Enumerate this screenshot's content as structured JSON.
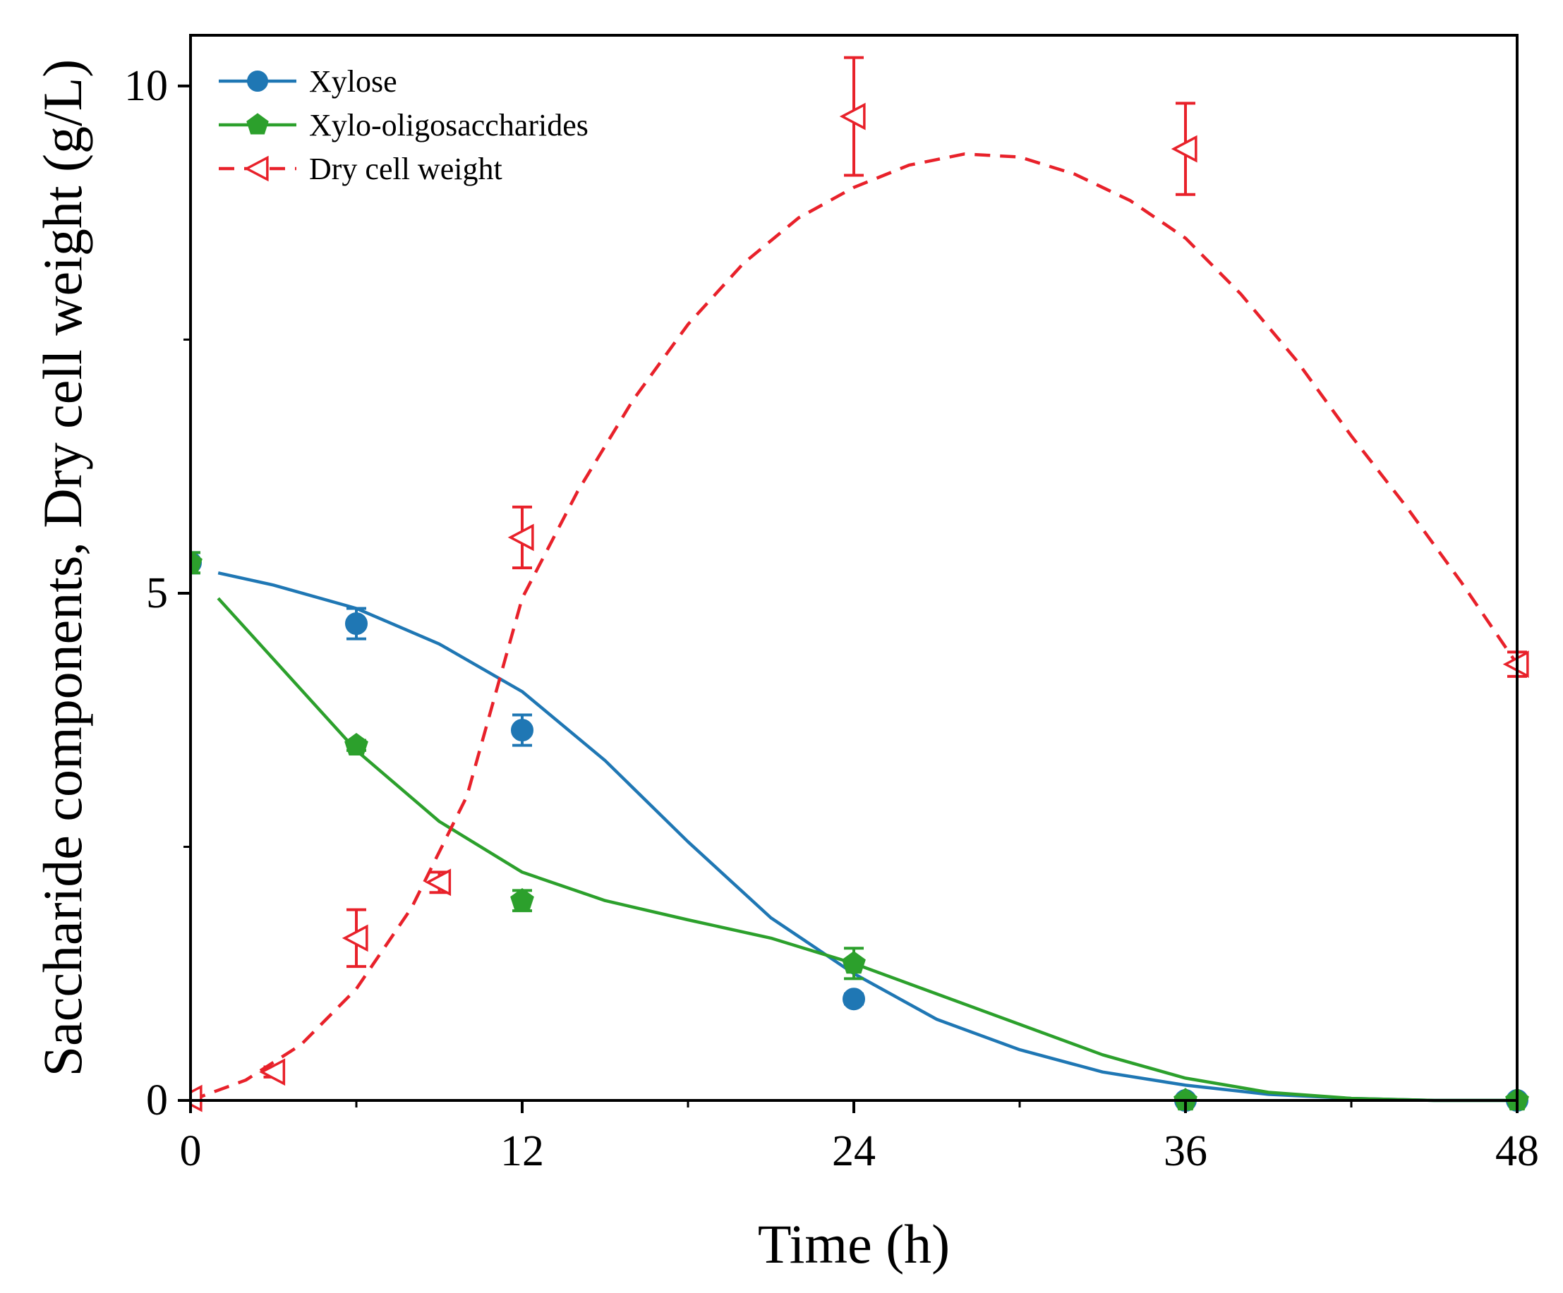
{
  "chart_data": {
    "type": "line",
    "xlabel": "Time (h)",
    "ylabel": "Saccharide components, Dry cell weight (g/L)",
    "xlim": [
      0,
      48
    ],
    "ylim": [
      0,
      10.5
    ],
    "x_ticks": [
      0,
      12,
      24,
      36,
      48
    ],
    "x_minor_ticks": [
      6,
      18,
      30,
      42
    ],
    "y_ticks": [
      0,
      5,
      10
    ],
    "y_minor_ticks": [
      2.5,
      7.5
    ],
    "grid": false,
    "legend_position": "top-left",
    "series": [
      {
        "name": "Xylose",
        "color": "#1f77b4",
        "marker": "circle",
        "line_style": "solid",
        "points": [
          {
            "x": 0,
            "y": 5.3,
            "err": 0.1
          },
          {
            "x": 6,
            "y": 4.7,
            "err": 0.15
          },
          {
            "x": 12,
            "y": 3.65,
            "err": 0.15
          },
          {
            "x": 24,
            "y": 1.0,
            "err": 0.05
          },
          {
            "x": 36,
            "y": 0.0,
            "err": 0.0
          },
          {
            "x": 48,
            "y": 0.0,
            "err": 0.0
          }
        ],
        "fit": [
          [
            1,
            5.2
          ],
          [
            3,
            5.08
          ],
          [
            6,
            4.85
          ],
          [
            9,
            4.5
          ],
          [
            12,
            4.03
          ],
          [
            15,
            3.35
          ],
          [
            18,
            2.55
          ],
          [
            21,
            1.8
          ],
          [
            24,
            1.25
          ],
          [
            27,
            0.8
          ],
          [
            30,
            0.5
          ],
          [
            33,
            0.28
          ],
          [
            36,
            0.15
          ],
          [
            39,
            0.06
          ],
          [
            42,
            0.02
          ],
          [
            45,
            0.0
          ],
          [
            48,
            0.0
          ]
        ]
      },
      {
        "name": "Xylo-oligosaccharides",
        "color": "#2ca02c",
        "marker": "pentagon",
        "line_style": "solid",
        "points": [
          {
            "x": 0,
            "y": 5.3,
            "err": 0.1
          },
          {
            "x": 6,
            "y": 3.5,
            "err": 0.05
          },
          {
            "x": 12,
            "y": 1.97,
            "err": 0.1
          },
          {
            "x": 24,
            "y": 1.35,
            "err": 0.15
          },
          {
            "x": 36,
            "y": 0.0,
            "err": 0.0
          },
          {
            "x": 48,
            "y": 0.0,
            "err": 0.0
          }
        ],
        "fit": [
          [
            1,
            4.95
          ],
          [
            3,
            4.35
          ],
          [
            6,
            3.45
          ],
          [
            9,
            2.75
          ],
          [
            12,
            2.25
          ],
          [
            15,
            1.97
          ],
          [
            18,
            1.78
          ],
          [
            21,
            1.6
          ],
          [
            24,
            1.35
          ],
          [
            27,
            1.05
          ],
          [
            30,
            0.75
          ],
          [
            33,
            0.45
          ],
          [
            36,
            0.22
          ],
          [
            39,
            0.08
          ],
          [
            42,
            0.02
          ],
          [
            45,
            0.0
          ],
          [
            48,
            0.0
          ]
        ]
      },
      {
        "name": "Dry cell weight",
        "color": "#e8212a",
        "marker": "triangle-left",
        "line_style": "dashed",
        "points": [
          {
            "x": 0,
            "y": 0.02,
            "err": 0.0
          },
          {
            "x": 3,
            "y": 0.28,
            "err": 0.05
          },
          {
            "x": 6,
            "y": 1.6,
            "err": 0.28
          },
          {
            "x": 9,
            "y": 2.15,
            "err": 0.1
          },
          {
            "x": 12,
            "y": 5.55,
            "err": 0.3
          },
          {
            "x": 24,
            "y": 9.7,
            "err": 0.58
          },
          {
            "x": 36,
            "y": 9.38,
            "err": 0.45
          },
          {
            "x": 48,
            "y": 4.3,
            "err": 0.12
          }
        ],
        "fit": [
          [
            0,
            0.0
          ],
          [
            2,
            0.2
          ],
          [
            4,
            0.55
          ],
          [
            6,
            1.1
          ],
          [
            8,
            1.9
          ],
          [
            10,
            3.0
          ],
          [
            12,
            4.95
          ],
          [
            14,
            6.0
          ],
          [
            16,
            6.9
          ],
          [
            18,
            7.65
          ],
          [
            20,
            8.25
          ],
          [
            22,
            8.7
          ],
          [
            24,
            9.0
          ],
          [
            26,
            9.22
          ],
          [
            28,
            9.33
          ],
          [
            30,
            9.3
          ],
          [
            32,
            9.13
          ],
          [
            34,
            8.87
          ],
          [
            36,
            8.5
          ],
          [
            38,
            7.95
          ],
          [
            40,
            7.3
          ],
          [
            42,
            6.55
          ],
          [
            44,
            5.85
          ],
          [
            46,
            5.1
          ],
          [
            48,
            4.3
          ]
        ]
      }
    ]
  }
}
